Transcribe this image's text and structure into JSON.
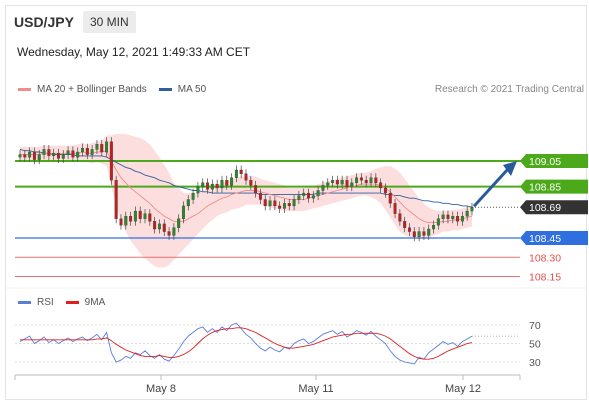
{
  "header": {
    "symbol": "USD/JPY",
    "timeframe": "30 MIN",
    "datetime": "Wednesday, May 12, 2021 1:49:33 AM CET",
    "credit": "Research © 2021 Trading Central"
  },
  "legend_main": [
    {
      "label": "MA 20 + Bollinger Bands",
      "color": "#f08c8c"
    },
    {
      "label": "MA 50",
      "color": "#2f5f9e"
    }
  ],
  "legend_rsi": [
    {
      "label": "RSI",
      "color": "#5a7fd8"
    },
    {
      "label": "9MA",
      "color": "#e02020"
    }
  ],
  "colors": {
    "resistance": "#4caa1a",
    "pivot": "#2f6fe0",
    "support": "#e05050",
    "current": "#333333",
    "up_candle": "#2a8a2a",
    "down_candle": "#c02020",
    "bollinger_fill": "#fbd3d3",
    "arrow": "#2a5a9a"
  },
  "chart_data": [
    {
      "type": "candlestick",
      "title": "USD/JPY 30 MIN",
      "y_range": [
        108.1,
        109.25
      ],
      "x_ticks": [
        "May 8",
        "May 11",
        "May 12"
      ],
      "levels": [
        {
          "value": 109.05,
          "label": "109.05",
          "kind": "resistance"
        },
        {
          "value": 108.85,
          "label": "108.85",
          "kind": "resistance"
        },
        {
          "value": 108.69,
          "label": "108.69",
          "kind": "current"
        },
        {
          "value": 108.45,
          "label": "108.45",
          "kind": "pivot"
        },
        {
          "value": 108.3,
          "label": "108.30",
          "kind": "support"
        },
        {
          "value": 108.15,
          "label": "108.15",
          "kind": "support"
        }
      ],
      "close_series": [
        109.1,
        109.08,
        109.12,
        109.06,
        109.1,
        109.14,
        109.09,
        109.11,
        109.07,
        109.1,
        109.13,
        109.08,
        109.12,
        109.15,
        109.1,
        109.14,
        109.18,
        109.12,
        109.2,
        108.9,
        108.6,
        108.55,
        108.62,
        108.58,
        108.66,
        108.6,
        108.64,
        108.58,
        108.52,
        108.56,
        108.5,
        108.47,
        108.53,
        108.6,
        108.7,
        108.75,
        108.8,
        108.85,
        108.88,
        108.83,
        108.87,
        108.84,
        108.9,
        108.86,
        108.92,
        108.98,
        108.95,
        108.9,
        108.86,
        108.8,
        108.75,
        108.7,
        108.74,
        108.7,
        108.68,
        108.72,
        108.7,
        108.75,
        108.78,
        108.8,
        108.76,
        108.78,
        108.82,
        108.86,
        108.88,
        108.9,
        108.87,
        108.9,
        108.85,
        108.88,
        108.92,
        108.9,
        108.88,
        108.92,
        108.88,
        108.84,
        108.8,
        108.72,
        108.64,
        108.58,
        108.53,
        108.5,
        108.46,
        108.5,
        108.47,
        108.52,
        108.55,
        108.6,
        108.63,
        108.6,
        108.62,
        108.58,
        108.62,
        108.66,
        108.69
      ],
      "ma20": [
        109.1,
        109.1,
        109.1,
        109.1,
        109.1,
        109.11,
        109.11,
        109.11,
        109.11,
        109.11,
        109.11,
        109.11,
        109.11,
        109.12,
        109.11,
        109.11,
        109.12,
        109.12,
        109.13,
        109.05,
        108.98,
        108.92,
        108.88,
        108.84,
        108.81,
        108.78,
        108.75,
        108.72,
        108.68,
        108.65,
        108.62,
        108.6,
        108.58,
        108.58,
        108.58,
        108.6,
        108.62,
        108.64,
        108.67,
        108.7,
        108.72,
        108.74,
        108.76,
        108.77,
        108.79,
        108.8,
        108.81,
        108.82,
        108.82,
        108.82,
        108.81,
        108.8,
        108.79,
        108.78,
        108.77,
        108.76,
        108.75,
        108.75,
        108.75,
        108.75,
        108.76,
        108.77,
        108.78,
        108.79,
        108.8,
        108.81,
        108.82,
        108.83,
        108.84,
        108.85,
        108.86,
        108.87,
        108.87,
        108.87,
        108.87,
        108.86,
        108.84,
        108.81,
        108.77,
        108.73,
        108.69,
        108.66,
        108.63,
        108.6,
        108.58,
        108.57,
        108.57,
        108.57,
        108.58,
        108.58,
        108.59,
        108.59,
        108.6,
        108.61,
        108.62
      ],
      "ma50": [
        109.14,
        109.13,
        109.13,
        109.12,
        109.12,
        109.11,
        109.11,
        109.1,
        109.1,
        109.1,
        109.1,
        109.1,
        109.09,
        109.09,
        109.09,
        109.09,
        109.09,
        109.09,
        109.08,
        109.06,
        109.04,
        109.02,
        109.0,
        108.99,
        108.97,
        108.96,
        108.94,
        108.93,
        108.92,
        108.9,
        108.89,
        108.88,
        108.86,
        108.85,
        108.84,
        108.83,
        108.82,
        108.82,
        108.81,
        108.81,
        108.8,
        108.8,
        108.8,
        108.8,
        108.8,
        108.8,
        108.8,
        108.8,
        108.8,
        108.8,
        108.79,
        108.79,
        108.79,
        108.79,
        108.79,
        108.79,
        108.79,
        108.79,
        108.79,
        108.79,
        108.79,
        108.79,
        108.8,
        108.8,
        108.8,
        108.8,
        108.8,
        108.8,
        108.8,
        108.8,
        108.8,
        108.8,
        108.8,
        108.8,
        108.8,
        108.8,
        108.79,
        108.79,
        108.78,
        108.78,
        108.77,
        108.76,
        108.76,
        108.75,
        108.74,
        108.74,
        108.73,
        108.73,
        108.72,
        108.72,
        108.71,
        108.71,
        108.7,
        108.7,
        108.69
      ],
      "bb_width": [
        0.06,
        0.06,
        0.06,
        0.06,
        0.06,
        0.06,
        0.06,
        0.06,
        0.06,
        0.06,
        0.06,
        0.06,
        0.07,
        0.07,
        0.07,
        0.08,
        0.08,
        0.09,
        0.12,
        0.2,
        0.28,
        0.34,
        0.38,
        0.41,
        0.43,
        0.45,
        0.46,
        0.46,
        0.45,
        0.43,
        0.4,
        0.36,
        0.3,
        0.26,
        0.22,
        0.2,
        0.18,
        0.16,
        0.15,
        0.14,
        0.13,
        0.12,
        0.12,
        0.12,
        0.12,
        0.12,
        0.12,
        0.11,
        0.11,
        0.11,
        0.1,
        0.1,
        0.1,
        0.1,
        0.1,
        0.1,
        0.09,
        0.09,
        0.09,
        0.09,
        0.09,
        0.09,
        0.09,
        0.09,
        0.09,
        0.09,
        0.09,
        0.09,
        0.09,
        0.09,
        0.09,
        0.09,
        0.09,
        0.1,
        0.12,
        0.14,
        0.17,
        0.2,
        0.22,
        0.23,
        0.22,
        0.2,
        0.18,
        0.16,
        0.14,
        0.12,
        0.1,
        0.09,
        0.08,
        0.08,
        0.08,
        0.08,
        0.08,
        0.08,
        0.08
      ],
      "forecast_target": 109.05
    },
    {
      "type": "line",
      "title": "RSI",
      "y_range": [
        20,
        80
      ],
      "y_ticks": [
        70,
        50,
        30
      ],
      "series": [
        {
          "name": "RSI",
          "values": [
            52,
            55,
            58,
            50,
            53,
            57,
            51,
            54,
            50,
            53,
            56,
            52,
            55,
            57,
            53,
            56,
            60,
            54,
            62,
            40,
            30,
            32,
            36,
            34,
            40,
            38,
            42,
            37,
            34,
            38,
            33,
            31,
            37,
            44,
            52,
            58,
            62,
            66,
            68,
            62,
            66,
            62,
            68,
            64,
            70,
            72,
            66,
            60,
            56,
            50,
            45,
            42,
            46,
            43,
            41,
            46,
            44,
            50,
            53,
            55,
            50,
            52,
            56,
            60,
            62,
            64,
            60,
            63,
            57,
            60,
            64,
            62,
            59,
            63,
            58,
            54,
            50,
            42,
            36,
            32,
            30,
            29,
            28,
            35,
            33,
            40,
            44,
            48,
            52,
            49,
            51,
            47,
            52,
            55,
            58
          ]
        },
        {
          "name": "9MA",
          "values": [
            54,
            54,
            54,
            54,
            54,
            54,
            54,
            54,
            54,
            54,
            54,
            54,
            54,
            54,
            54,
            54,
            55,
            55,
            56,
            53,
            49,
            46,
            43,
            41,
            39,
            37,
            36,
            36,
            36,
            37,
            36,
            35,
            35,
            36,
            38,
            41,
            45,
            50,
            55,
            59,
            62,
            64,
            65,
            66,
            66,
            67,
            67,
            66,
            64,
            62,
            59,
            56,
            53,
            50,
            48,
            46,
            45,
            45,
            46,
            47,
            48,
            49,
            51,
            53,
            55,
            57,
            58,
            59,
            60,
            60,
            61,
            61,
            61,
            61,
            61,
            60,
            58,
            55,
            51,
            47,
            43,
            39,
            36,
            34,
            33,
            33,
            34,
            36,
            39,
            42,
            44,
            46,
            48,
            50,
            51
          ]
        }
      ]
    }
  ]
}
